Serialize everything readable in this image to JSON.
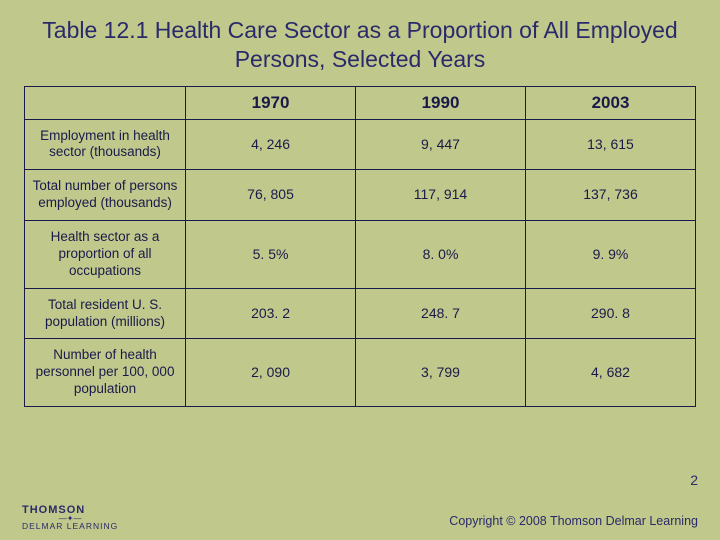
{
  "title": "Table 12.1  Health Care Sector as a Proportion of All Employed Persons, Selected Years",
  "table": {
    "type": "table",
    "background_color": "#c0c88c",
    "border_color": "#1a1a4a",
    "text_color": "#1a1a4a",
    "title_color": "#2a2a6a",
    "title_fontsize": 23,
    "header_fontsize": 17,
    "cell_fontsize": 14,
    "columns": [
      "",
      "1970",
      "1990",
      "2003"
    ],
    "rows": [
      {
        "label": "Employment in health sector (thousands)",
        "values": [
          "4, 246",
          "9, 447",
          "13, 615"
        ]
      },
      {
        "label": "Total number of persons employed (thousands)",
        "values": [
          "76, 805",
          "117, 914",
          "137, 736"
        ]
      },
      {
        "label": "Health sector as a proportion of all occupations",
        "values": [
          "5. 5%",
          "8. 0%",
          "9. 9%"
        ]
      },
      {
        "label": "Total resident U. S. population (millions)",
        "values": [
          "203. 2",
          "248. 7",
          "290. 8"
        ]
      },
      {
        "label": "Number of health personnel per 100, 000 population",
        "values": [
          "2, 090",
          "3, 799",
          "4, 682"
        ]
      }
    ]
  },
  "footer": {
    "page_number": "2",
    "copyright": "Copyright © 2008 Thomson Delmar Learning",
    "logo_line1": "THOMSON",
    "logo_star": "—✦—",
    "logo_line2": "DELMAR LEARNING"
  }
}
